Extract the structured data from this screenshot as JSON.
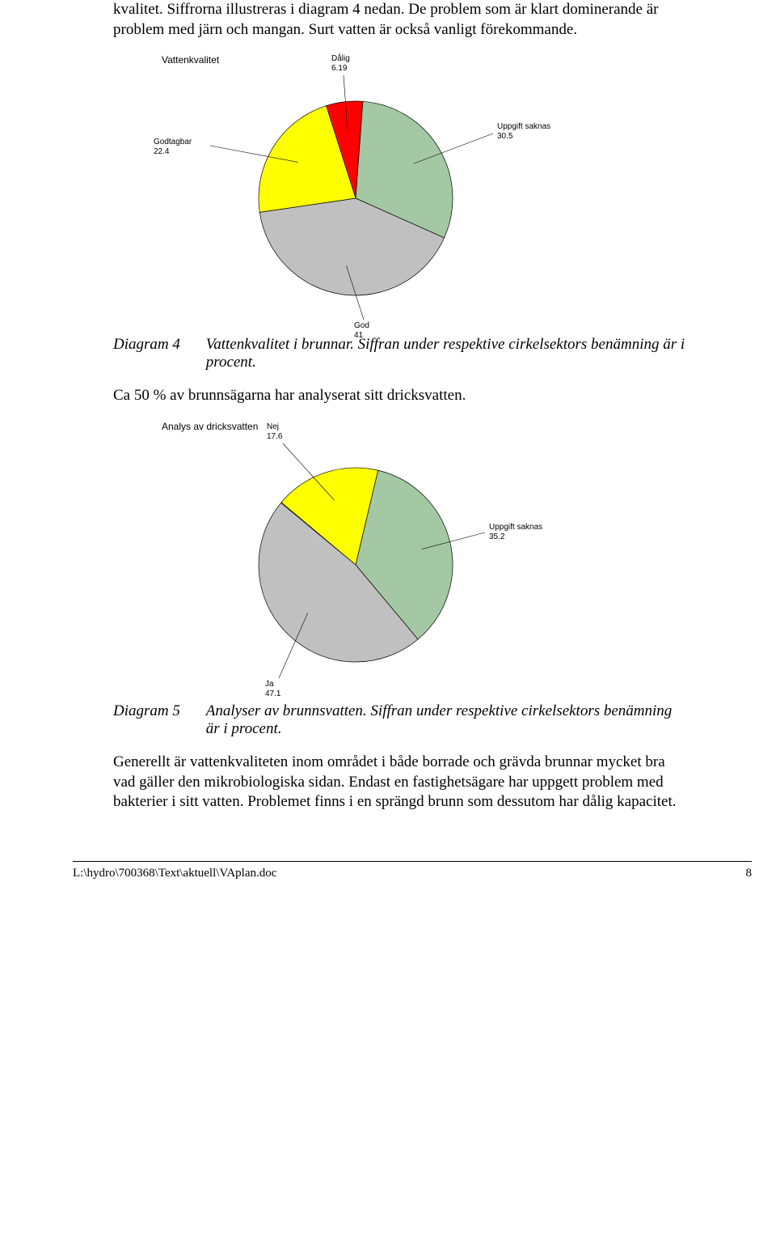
{
  "intro_text": "kvalitet. Siffrorna illustreras i diagram 4 nedan. De problem som är klart dominerande är problem med järn och mangan. Surt vatten är också vanligt förekommande.",
  "chart1": {
    "type": "pie",
    "title": "Vattenkvalitet",
    "background_color": "#ffffff",
    "stroke_color": "#000000",
    "label_font": "Arial",
    "label_fontsize": 10,
    "slices": [
      {
        "label": "Dålig",
        "value": "6.19",
        "percent": 6.19,
        "color": "#ff0000"
      },
      {
        "label": "Uppgift saknas",
        "value": "30.5",
        "percent": 30.5,
        "color": "#a4c8a4"
      },
      {
        "label": "God",
        "value": "41",
        "percent": 41,
        "color": "#c0c0c0"
      },
      {
        "label": "Godtagbar",
        "value": "22.4",
        "percent": 22.4,
        "color": "#ffff00"
      }
    ]
  },
  "caption1_num": "Diagram 4",
  "caption1_text": "Vattenkvalitet i brunnar. Siffran under respektive cirkelsektors benämning är i procent.",
  "mid_text": "Ca 50 % av brunnsägarna har analyserat sitt dricksvatten.",
  "chart2": {
    "type": "pie",
    "title": "Analys av dricksvatten",
    "background_color": "#ffffff",
    "stroke_color": "#000000",
    "label_font": "Arial",
    "label_fontsize": 10,
    "slices": [
      {
        "label": "Nej",
        "value": "17.6",
        "percent": 17.6,
        "color": "#ffff00"
      },
      {
        "label": "Uppgift saknas",
        "value": "35.2",
        "percent": 35.2,
        "color": "#a4c8a4"
      },
      {
        "label": "Ja",
        "value": "47.1",
        "percent": 47.1,
        "color": "#c0c0c0"
      }
    ]
  },
  "caption2_num": "Diagram 5",
  "caption2_text": "Analyser av brunnsvatten. Siffran under respektive cirkelsektors benämning är i procent.",
  "end_text": "Generellt är vattenkvaliteten inom området i både borrade och grävda brunnar mycket bra vad gäller den mikrobiologiska sidan. Endast en fastighetsägare har uppgett problem med bakterier i sitt vatten. Problemet finns i en sprängd brunn som dessutom har dålig kapacitet.",
  "footer_path": "L:\\hydro\\700368\\Text\\aktuell\\VAplan.doc",
  "footer_page": "8"
}
